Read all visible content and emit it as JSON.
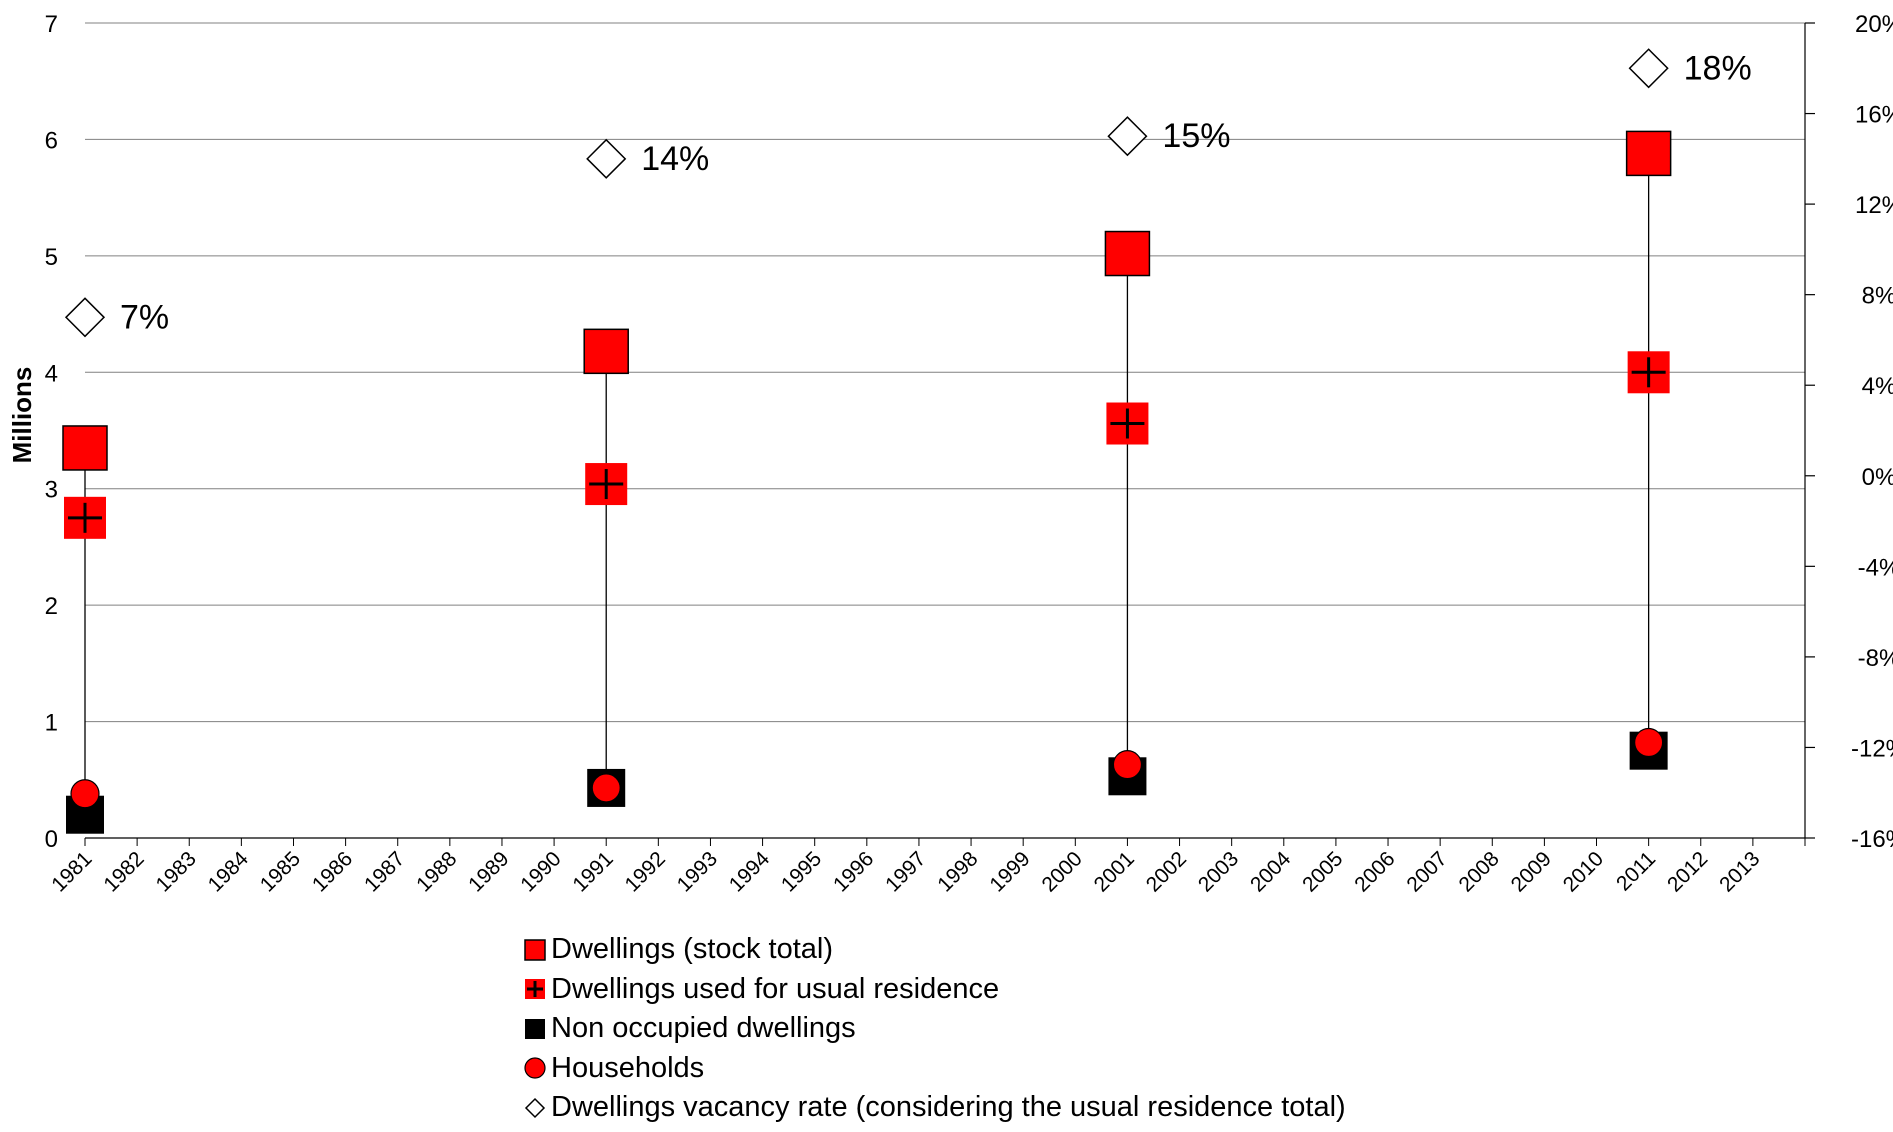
{
  "chart_data": {
    "type": "scatter",
    "ylabel": "Millions",
    "categories": [
      "1981",
      "1982",
      "1983",
      "1984",
      "1985",
      "1986",
      "1987",
      "1988",
      "1989",
      "1990",
      "1991",
      "1992",
      "1993",
      "1994",
      "1995",
      "1996",
      "1997",
      "1998",
      "1999",
      "2000",
      "2001",
      "2002",
      "2003",
      "2004",
      "2005",
      "2006",
      "2007",
      "2008",
      "2009",
      "2010",
      "2011",
      "2012",
      "2013"
    ],
    "ylim": [
      0,
      7
    ],
    "y_ticks": [
      "0",
      "1",
      "2",
      "3",
      "4",
      "5",
      "6",
      "7"
    ],
    "y2lim": [
      -0.16,
      0.2
    ],
    "y2_ticks": [
      "-16%",
      "-12%",
      "-8%",
      "-4%",
      "0%",
      "4%",
      "8%",
      "12%",
      "16%",
      "20%"
    ],
    "grid": "horizontal",
    "legend_position": "bottom",
    "series": [
      {
        "name": "Dwellings (stock total)",
        "marker": "square-red",
        "x": [
          "1981",
          "1991",
          "2001",
          "2011"
        ],
        "values": [
          3.35,
          4.18,
          5.02,
          5.88
        ]
      },
      {
        "name": "Dwellings used for usual residence",
        "marker": "square-red-cross",
        "x": [
          "1981",
          "1991",
          "2001",
          "2011"
        ],
        "values": [
          2.75,
          3.04,
          3.56,
          4.0
        ]
      },
      {
        "name": "Non occupied dwellings",
        "marker": "square-black",
        "x": [
          "1981",
          "1991",
          "2001",
          "2011"
        ],
        "values": [
          0.2,
          0.43,
          0.53,
          0.75
        ]
      },
      {
        "name": "Households",
        "marker": "circle-red",
        "x": [
          "1981",
          "1991",
          "2001",
          "2011"
        ],
        "values": [
          0.38,
          0.43,
          0.63,
          0.82
        ]
      },
      {
        "name": "Dwellings vacancy rate (considering the usual residence total)",
        "marker": "diamond-white",
        "axis": "right",
        "x": [
          "1981",
          "1991",
          "2001",
          "2011"
        ],
        "values": [
          0.07,
          0.14,
          0.15,
          0.18
        ],
        "labels": [
          "7%",
          "14%",
          "15%",
          "18%"
        ]
      }
    ],
    "colors": {
      "red": "#ff0000",
      "black": "#000000",
      "grid": "#808080"
    }
  }
}
